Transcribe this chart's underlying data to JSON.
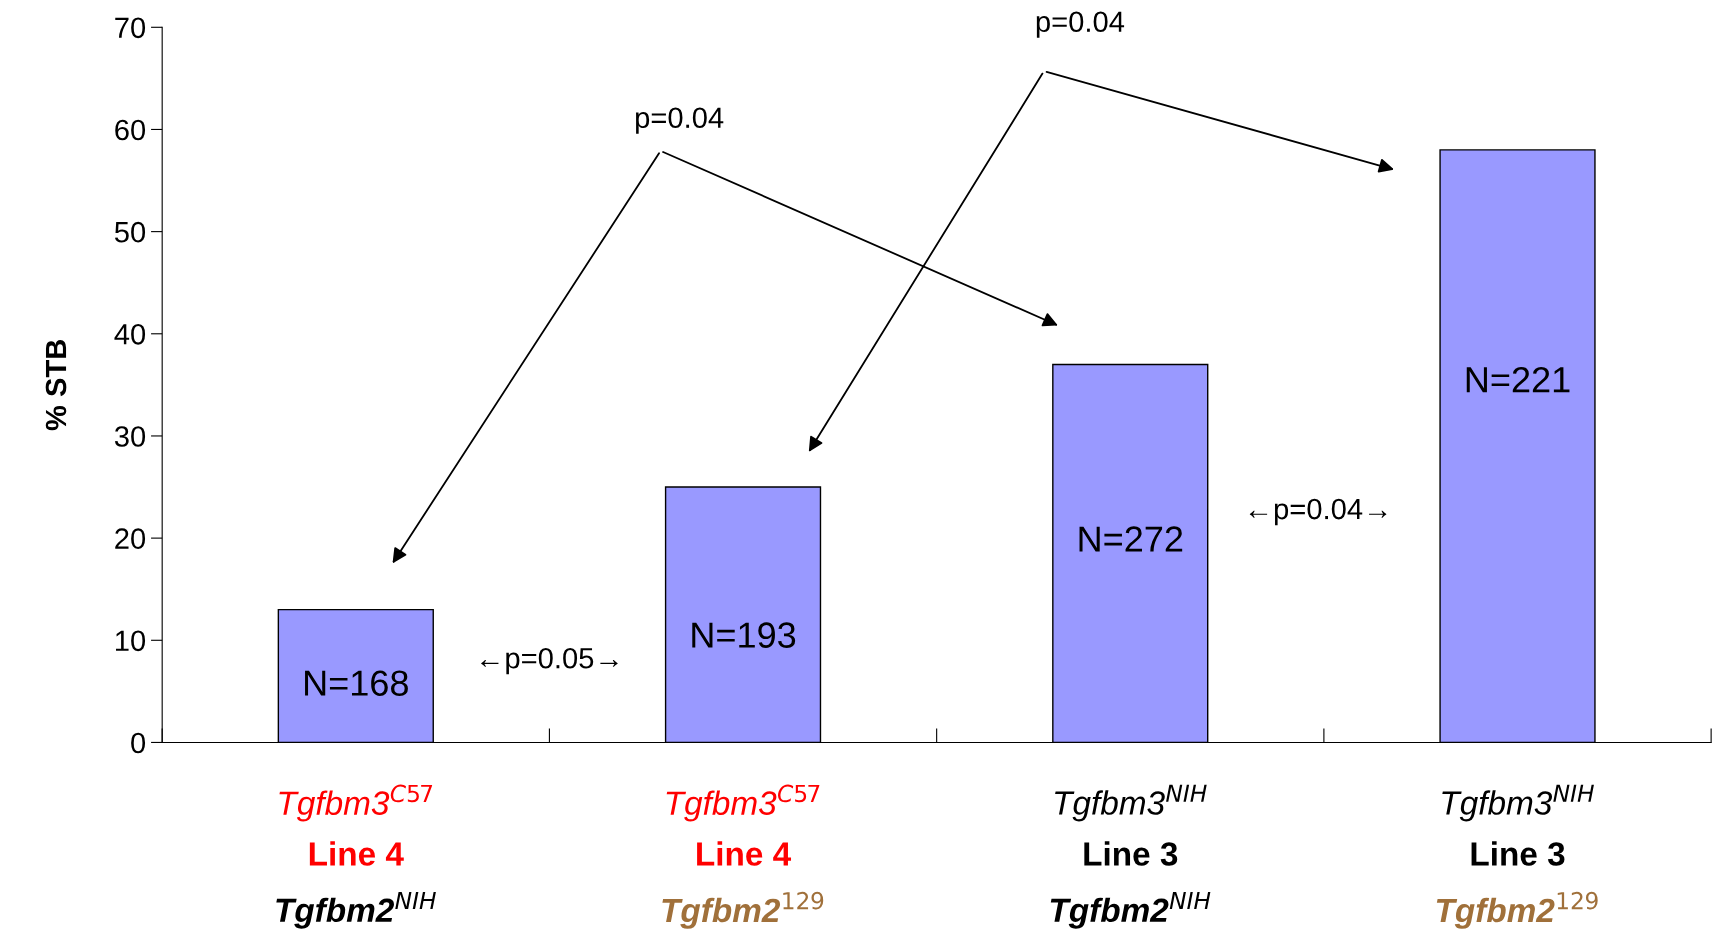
{
  "chart_data": {
    "type": "bar",
    "ylabel": "% STB",
    "categories": [
      "Tgfbm3$^{C57}$\nLine 4\nTgfbm2$^{NIH}$",
      "Tgfbm3$^{C57}$\nLine 4\nTgfbm2$^{129}$",
      "Tgfbm3$^{NIH}$\nLine 3\nTgfbm2$^{NIH}$",
      "Tgfbm3$^{NIH}$\nLine 3\nTgfbm2$^{129}$"
    ],
    "values": [
      13,
      25,
      37,
      58
    ],
    "color": "#9999ff",
    "ylim": [
      0,
      70
    ],
    "yticks": [
      0,
      10,
      20,
      30,
      40,
      50,
      60,
      70
    ],
    "grid": false,
    "legend": false,
    "annotations": [
      "N=168",
      "N=193",
      "N=272",
      "N=221",
      "p=0.04",
      "p=0.04",
      "←p=0.05→",
      "←p=0.04→"
    ]
  }
}
